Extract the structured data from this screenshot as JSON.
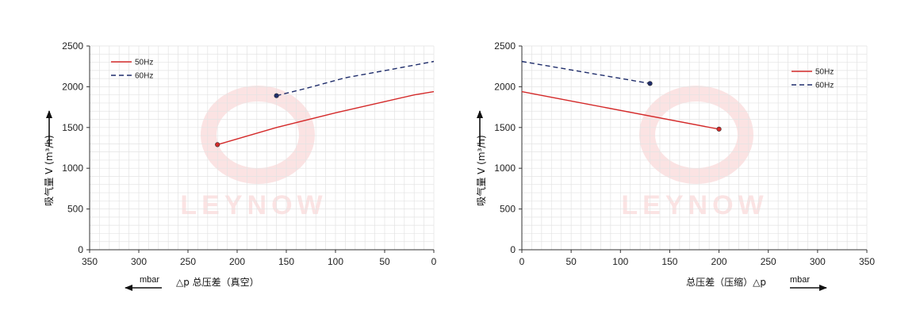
{
  "colors": {
    "series_50hz": "#d42a2a",
    "series_60hz": "#1f2d6b",
    "grid": "#e3e3e3",
    "axis": "#333333",
    "watermark": "#fbe3e3"
  },
  "watermark": "LEYNOW",
  "chart_data": [
    {
      "type": "line",
      "ylabel": "吸气量 V (m³/h)",
      "xlabel": "△p  总压差（真空）",
      "x_unit": "mbar",
      "x_direction": "reversed",
      "xlim": [
        0,
        350
      ],
      "ylim": [
        0,
        2500
      ],
      "xticks": [
        350,
        300,
        250,
        200,
        150,
        100,
        50,
        0
      ],
      "yticks": [
        0,
        500,
        1000,
        1500,
        2000,
        2500
      ],
      "grid": true,
      "legend_position": "top-left",
      "series": [
        {
          "name": "50Hz",
          "style": "solid",
          "end_marker": "low-x-end",
          "x": [
            220,
            160,
            100,
            20,
            0
          ],
          "y": [
            1290,
            1500,
            1680,
            1900,
            1940
          ]
        },
        {
          "name": "60Hz",
          "style": "dashed",
          "end_marker": "low-x-end",
          "x": [
            160,
            130,
            90,
            40,
            0
          ],
          "y": [
            1890,
            1980,
            2110,
            2220,
            2310
          ]
        }
      ]
    },
    {
      "type": "line",
      "ylabel": "吸气量 V (m³/h)",
      "xlabel": "总压差（压缩）△p",
      "x_unit": "mbar",
      "x_direction": "normal",
      "xlim": [
        0,
        350
      ],
      "ylim": [
        0,
        2500
      ],
      "xticks": [
        0,
        50,
        100,
        150,
        200,
        250,
        300,
        350
      ],
      "yticks": [
        0,
        500,
        1000,
        1500,
        2000,
        2500
      ],
      "grid": true,
      "legend_position": "top-right",
      "series": [
        {
          "name": "50Hz",
          "style": "solid",
          "end_marker": "high-x-end",
          "x": [
            0,
            200
          ],
          "y": [
            1940,
            1480
          ]
        },
        {
          "name": "60Hz",
          "style": "dashed",
          "end_marker": "high-x-end",
          "x": [
            0,
            130
          ],
          "y": [
            2310,
            2040
          ]
        }
      ]
    }
  ]
}
